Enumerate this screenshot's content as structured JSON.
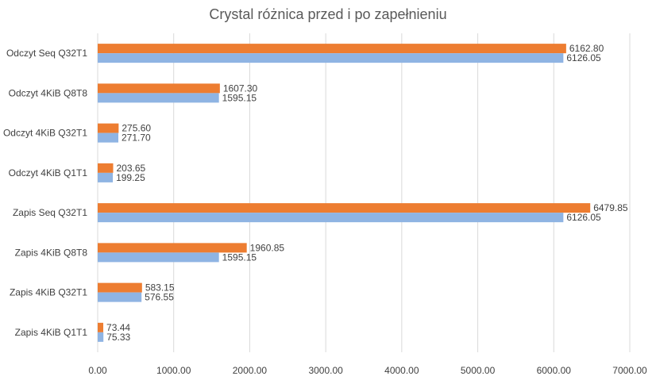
{
  "chart_data": {
    "type": "bar",
    "orientation": "horizontal",
    "title": "Crystal różnica przed i po zapełnieniu",
    "xlabel": "",
    "ylabel": "",
    "xlim": [
      0,
      7000
    ],
    "xticks": [
      0,
      1000,
      2000,
      3000,
      4000,
      5000,
      6000,
      7000
    ],
    "xtick_labels": [
      "0.00",
      "1000.00",
      "2000.00",
      "3000.00",
      "4000.00",
      "5000.00",
      "6000.00",
      "7000.00"
    ],
    "grid": true,
    "legend": "none",
    "categories": [
      "Odczyt Seq Q32T1",
      "Odczyt 4KiB Q8T8",
      "Odczyt 4KiB Q32T1",
      "Odczyt 4KiB Q1T1",
      "Zapis Seq Q32T1",
      "Zapis 4KiB Q8T8",
      "Zapis 4KiB Q32T1",
      "Zapis 4KiB Q1T1"
    ],
    "series": [
      {
        "color": "#ED7D31",
        "values": [
          6162.8,
          1607.3,
          275.6,
          203.65,
          6479.85,
          1960.85,
          583.15,
          73.44
        ],
        "labels": [
          "6162.80",
          "1607.30",
          "275.60",
          "203.65",
          "6479.85",
          "1960.85",
          "583.15",
          "73.44"
        ]
      },
      {
        "color": "#8FB4E3",
        "values": [
          6126.05,
          1595.15,
          271.7,
          199.25,
          6126.05,
          1595.15,
          576.55,
          75.33
        ],
        "labels": [
          "6126.05",
          "1595.15",
          "271.70",
          "199.25",
          "6126.05",
          "1595.15",
          "576.55",
          "75.33"
        ]
      }
    ]
  }
}
